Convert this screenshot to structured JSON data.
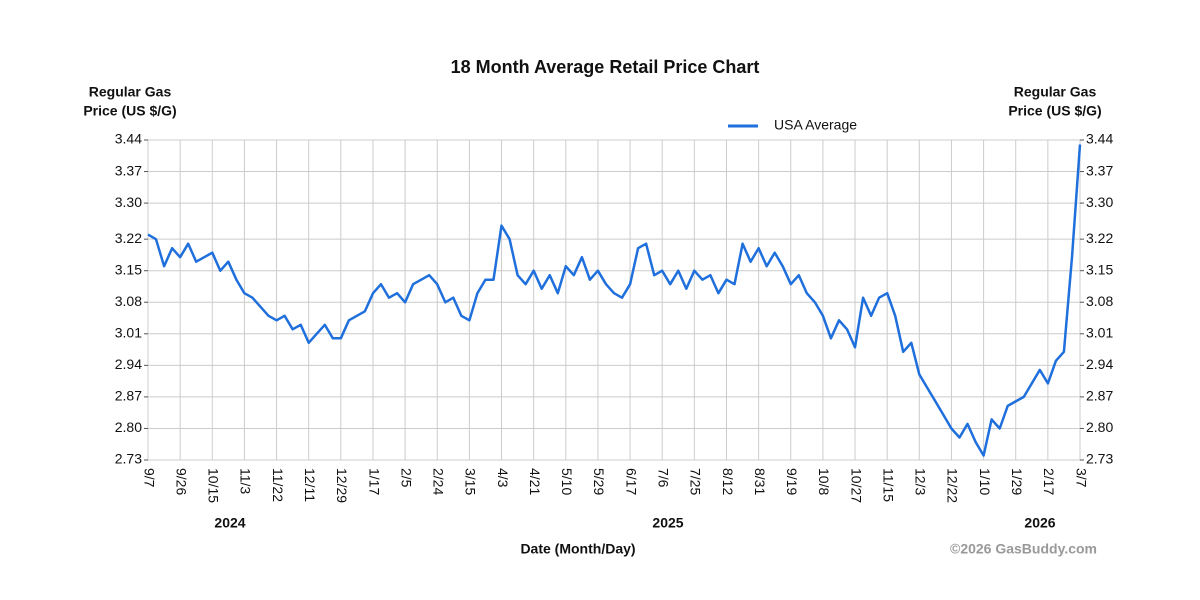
{
  "chart_data": {
    "type": "line",
    "title": "18 Month Average Retail Price Chart",
    "ylabel": [
      "Regular Gas",
      "Price (US $/G)"
    ],
    "y2label": [
      "Regular Gas",
      "Price (US $/G)"
    ],
    "xlabel": "Date (Month/Day)",
    "credit": "©2026 GasBuddy.com",
    "years": [
      "2024",
      "2025",
      "2026"
    ],
    "categories": [
      "9/7",
      null,
      null,
      null,
      "9/26",
      null,
      null,
      null,
      "10/15",
      null,
      null,
      null,
      "11/3",
      null,
      null,
      null,
      "11/22",
      null,
      null,
      null,
      "12/11",
      null,
      null,
      null,
      "12/29",
      null,
      null,
      null,
      "1/17",
      null,
      null,
      null,
      "2/5",
      null,
      null,
      null,
      "2/24",
      null,
      null,
      null,
      "3/15",
      null,
      null,
      null,
      "4/3",
      null,
      null,
      null,
      "4/21",
      null,
      null,
      null,
      "5/10",
      null,
      null,
      null,
      "5/29",
      null,
      null,
      null,
      "6/17",
      null,
      null,
      null,
      "7/6",
      null,
      null,
      null,
      "7/25",
      null,
      null,
      null,
      "8/12",
      null,
      null,
      null,
      "8/31",
      null,
      null,
      null,
      "9/19",
      null,
      null,
      null,
      "10/8",
      null,
      null,
      null,
      "10/27",
      null,
      null,
      null,
      "11/15",
      null,
      null,
      null,
      "12/3",
      null,
      null,
      null,
      "12/22",
      null,
      null,
      null,
      "1/10",
      null,
      null,
      null,
      "1/29",
      null,
      null,
      null,
      "2/17",
      null,
      null,
      null,
      "3/7"
    ],
    "series": [
      {
        "name": "USA Average",
        "color": "#1f6fdc",
        "values": [
          3.23,
          3.22,
          3.16,
          3.2,
          3.18,
          3.21,
          3.17,
          3.18,
          3.19,
          3.15,
          3.17,
          3.13,
          3.1,
          3.09,
          3.07,
          3.05,
          3.04,
          3.05,
          3.02,
          3.03,
          2.99,
          3.01,
          3.03,
          3.0,
          3.0,
          3.04,
          3.05,
          3.06,
          3.1,
          3.12,
          3.09,
          3.1,
          3.08,
          3.12,
          3.13,
          3.14,
          3.12,
          3.08,
          3.09,
          3.05,
          3.04,
          3.1,
          3.13,
          3.13,
          3.25,
          3.22,
          3.14,
          3.12,
          3.15,
          3.11,
          3.14,
          3.1,
          3.16,
          3.14,
          3.18,
          3.13,
          3.15,
          3.12,
          3.1,
          3.09,
          3.12,
          3.2,
          3.21,
          3.14,
          3.15,
          3.12,
          3.15,
          3.11,
          3.15,
          3.13,
          3.14,
          3.1,
          3.13,
          3.12,
          3.21,
          3.17,
          3.2,
          3.16,
          3.19,
          3.16,
          3.12,
          3.14,
          3.1,
          3.08,
          3.05,
          3.0,
          3.04,
          3.02,
          2.98,
          3.09,
          3.05,
          3.09,
          3.1,
          3.05,
          2.97,
          2.99,
          2.92,
          2.89,
          2.86,
          2.83,
          2.8,
          2.78,
          2.81,
          2.77,
          2.74,
          2.82,
          2.8,
          2.85,
          2.86,
          2.87,
          2.9,
          2.93,
          2.9,
          2.95,
          2.97,
          3.18,
          3.43
        ]
      }
    ],
    "ylim": [
      2.73,
      3.44
    ],
    "yticks": [
      2.73,
      {
        "value": 2.8,
        "label": "2.80"
      },
      2.87,
      2.94,
      3.01,
      3.08,
      3.15,
      3.22,
      {
        "value": 3.3,
        "label": "3.30"
      },
      3.37,
      3.44
    ],
    "y2lim": [
      2.73,
      3.44
    ],
    "y2ticks": [
      2.73,
      {
        "value": 2.8,
        "label": "2.80"
      },
      2.87,
      2.94,
      3.01,
      3.08,
      3.15,
      3.22,
      {
        "value": 3.3,
        "label": "3.30"
      },
      3.37,
      3.44
    ],
    "grid": true,
    "legend": "top-right"
  }
}
